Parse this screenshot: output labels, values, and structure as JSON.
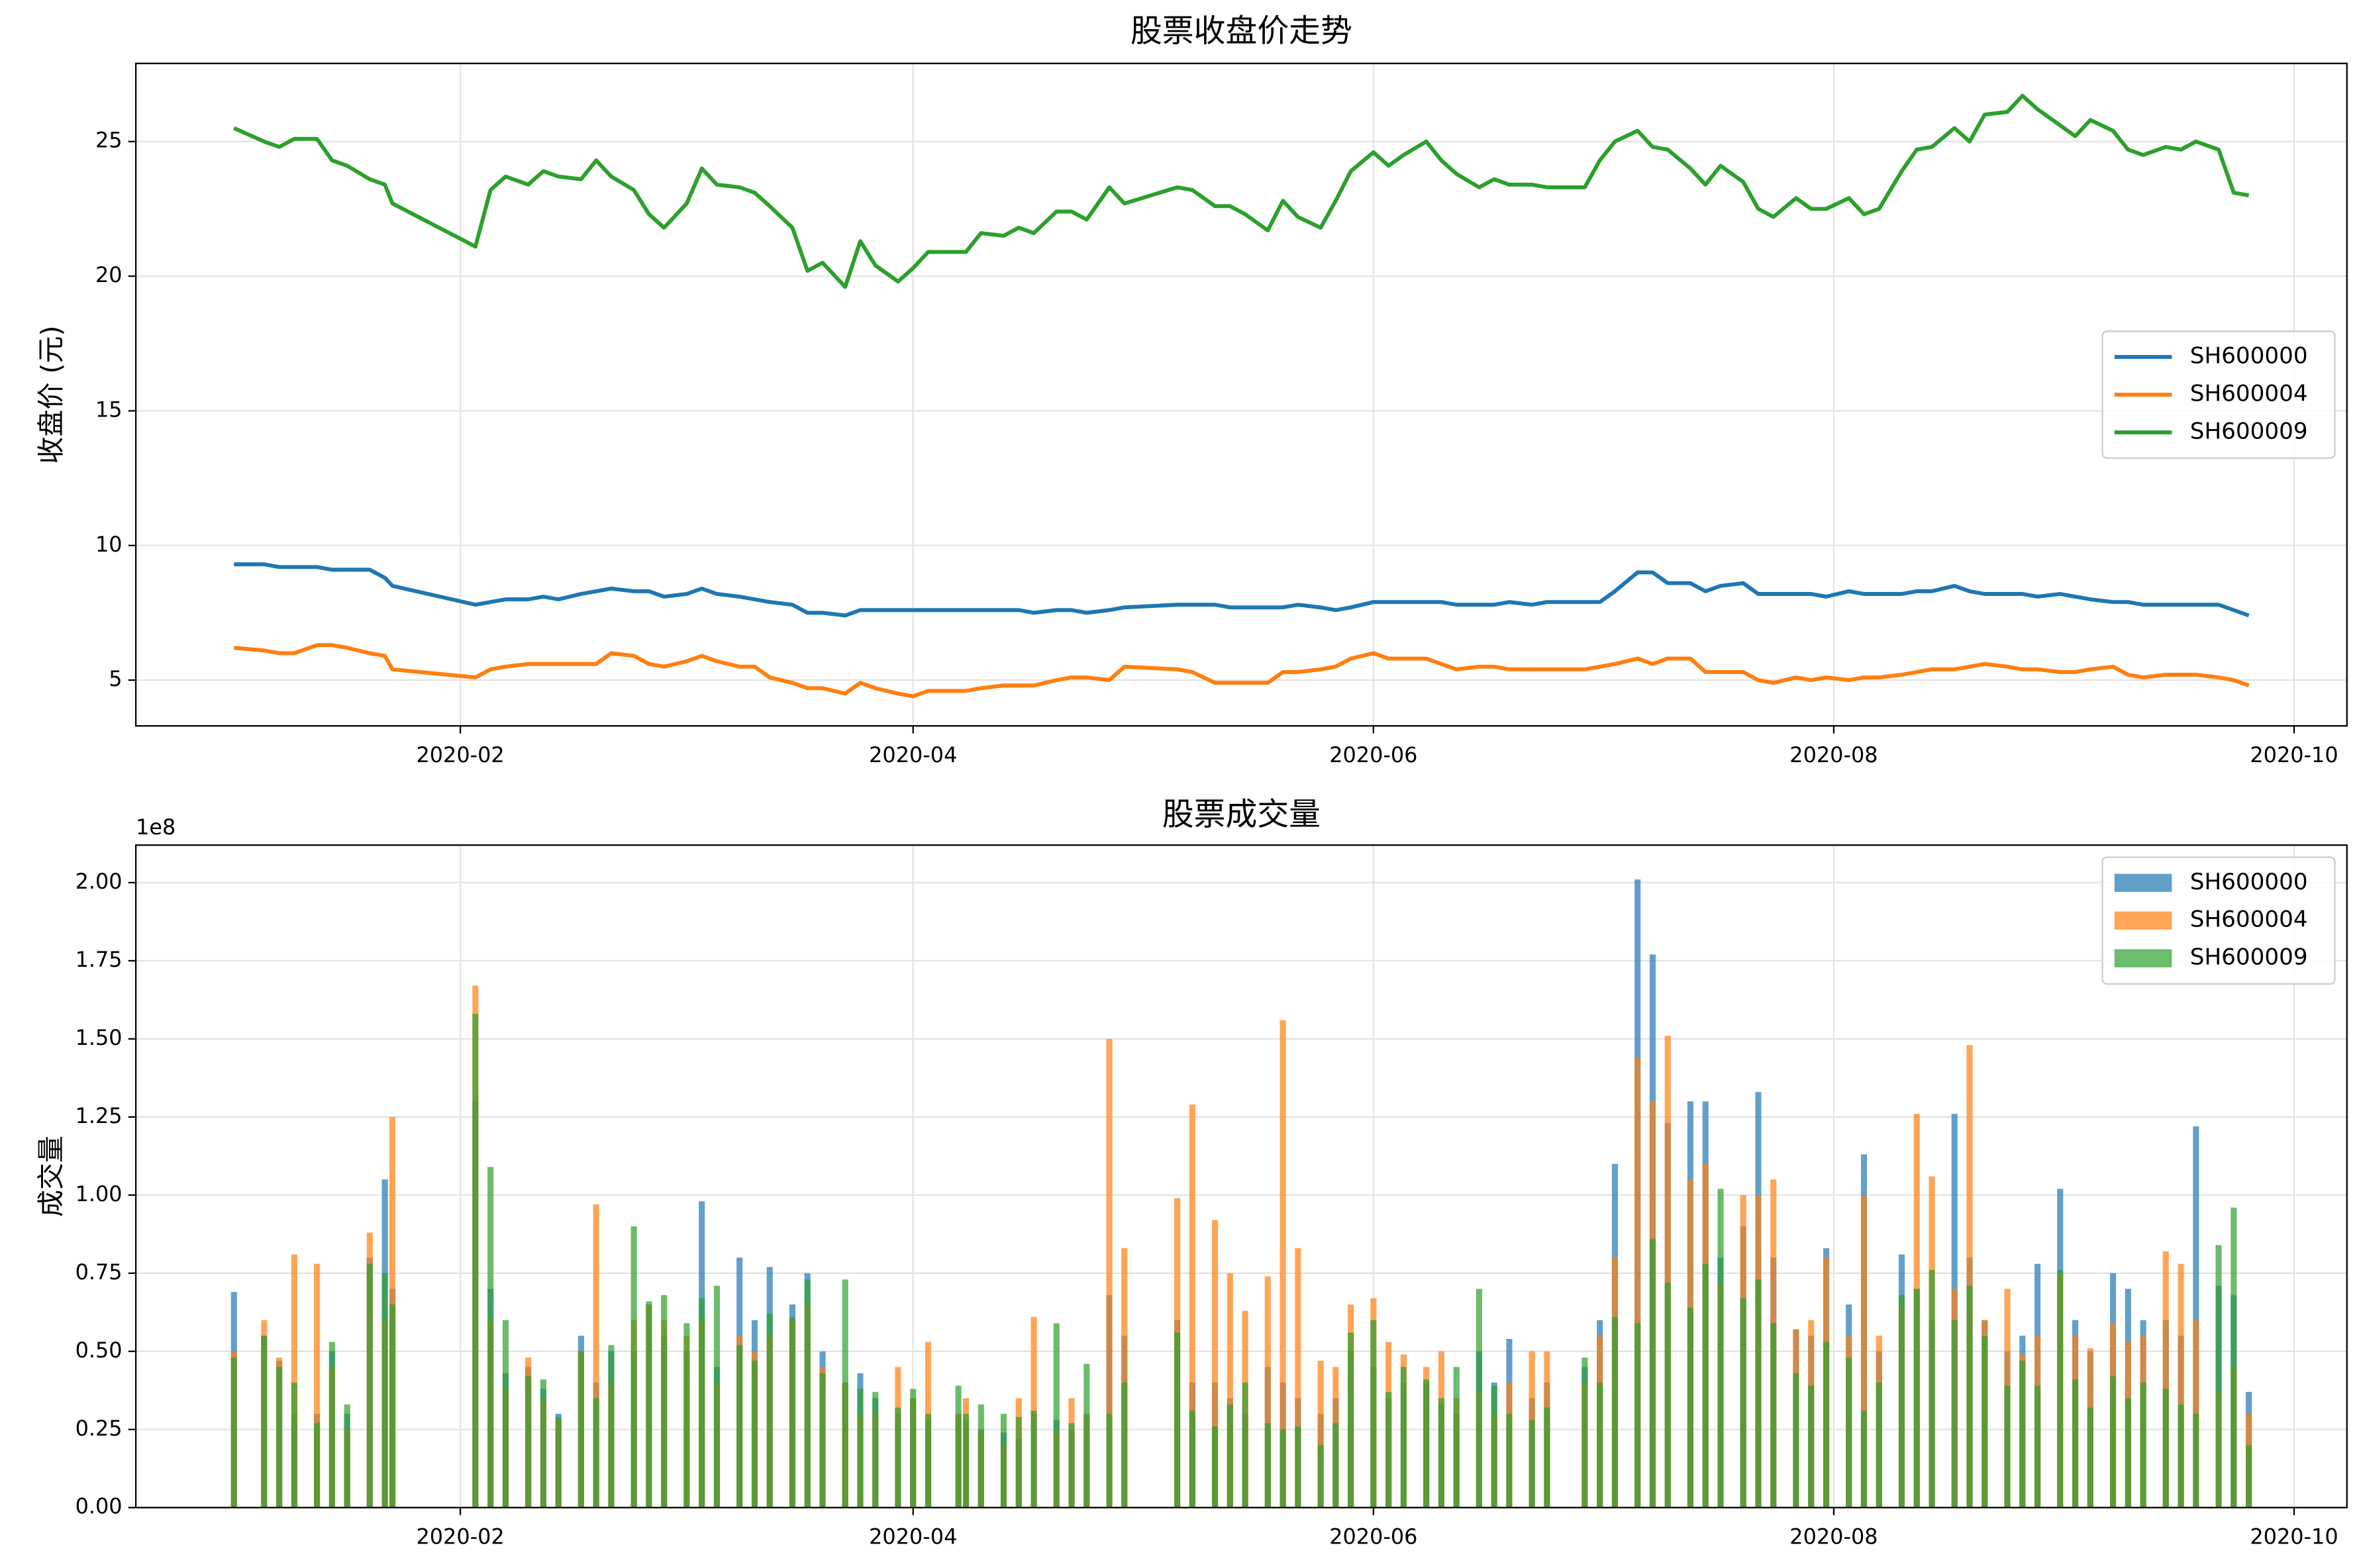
{
  "chart_data": [
    {
      "type": "line",
      "title": "股票收盘价走势",
      "ylabel": "收盘价 (元)",
      "x": [
        "2020-01-02",
        "2020-01-06",
        "2020-01-08",
        "2020-01-10",
        "2020-01-13",
        "2020-01-15",
        "2020-01-17",
        "2020-01-20",
        "2020-01-22",
        "2020-01-23",
        "2020-02-03",
        "2020-02-05",
        "2020-02-07",
        "2020-02-10",
        "2020-02-12",
        "2020-02-14",
        "2020-02-17",
        "2020-02-19",
        "2020-02-21",
        "2020-02-24",
        "2020-02-26",
        "2020-02-28",
        "2020-03-02",
        "2020-03-04",
        "2020-03-06",
        "2020-03-09",
        "2020-03-11",
        "2020-03-13",
        "2020-03-16",
        "2020-03-18",
        "2020-03-20",
        "2020-03-23",
        "2020-03-25",
        "2020-03-27",
        "2020-03-30",
        "2020-04-01",
        "2020-04-03",
        "2020-04-07",
        "2020-04-08",
        "2020-04-10",
        "2020-04-13",
        "2020-04-15",
        "2020-04-17",
        "2020-04-20",
        "2020-04-22",
        "2020-04-24",
        "2020-04-27",
        "2020-04-29",
        "2020-05-06",
        "2020-05-08",
        "2020-05-11",
        "2020-05-13",
        "2020-05-15",
        "2020-05-18",
        "2020-05-20",
        "2020-05-22",
        "2020-05-25",
        "2020-05-27",
        "2020-05-29",
        "2020-06-01",
        "2020-06-03",
        "2020-06-05",
        "2020-06-08",
        "2020-06-10",
        "2020-06-12",
        "2020-06-15",
        "2020-06-17",
        "2020-06-19",
        "2020-06-22",
        "2020-06-24",
        "2020-06-29",
        "2020-07-01",
        "2020-07-03",
        "2020-07-06",
        "2020-07-08",
        "2020-07-10",
        "2020-07-13",
        "2020-07-15",
        "2020-07-17",
        "2020-07-20",
        "2020-07-22",
        "2020-07-24",
        "2020-07-27",
        "2020-07-29",
        "2020-07-31",
        "2020-08-03",
        "2020-08-05",
        "2020-08-07",
        "2020-08-10",
        "2020-08-12",
        "2020-08-14",
        "2020-08-17",
        "2020-08-19",
        "2020-08-21",
        "2020-08-24",
        "2020-08-26",
        "2020-08-28",
        "2020-08-31",
        "2020-09-02",
        "2020-09-04",
        "2020-09-07",
        "2020-09-09",
        "2020-09-11",
        "2020-09-14",
        "2020-09-16",
        "2020-09-18",
        "2020-09-21",
        "2020-09-23",
        "2020-09-25"
      ],
      "xlim": [
        "2019-12-20",
        "2020-10-08"
      ],
      "xticks": [
        {
          "value": "2020-02-01",
          "label": "2020-02"
        },
        {
          "value": "2020-04-01",
          "label": "2020-04"
        },
        {
          "value": "2020-06-01",
          "label": "2020-06"
        },
        {
          "value": "2020-08-01",
          "label": "2020-08"
        },
        {
          "value": "2020-10-01",
          "label": "2020-10"
        }
      ],
      "ylim": [
        3.3,
        27.9
      ],
      "yticks": [
        5,
        10,
        15,
        20,
        25
      ],
      "grid": true,
      "legend": "center right",
      "series": [
        {
          "name": "SH600000",
          "color": "#1f77b4",
          "values": [
            9.3,
            9.3,
            9.2,
            9.2,
            9.2,
            9.1,
            9.1,
            9.1,
            8.8,
            8.5,
            7.8,
            7.9,
            8.0,
            8.0,
            8.1,
            8.0,
            8.2,
            8.3,
            8.4,
            8.3,
            8.3,
            8.1,
            8.2,
            8.4,
            8.2,
            8.1,
            8.0,
            7.9,
            7.8,
            7.5,
            7.5,
            7.4,
            7.6,
            7.6,
            7.6,
            7.6,
            7.6,
            7.6,
            7.6,
            7.6,
            7.6,
            7.6,
            7.5,
            7.6,
            7.6,
            7.5,
            7.6,
            7.7,
            7.8,
            7.8,
            7.8,
            7.7,
            7.7,
            7.7,
            7.7,
            7.8,
            7.7,
            7.6,
            7.7,
            7.9,
            7.9,
            7.9,
            7.9,
            7.9,
            7.8,
            7.8,
            7.8,
            7.9,
            7.8,
            7.9,
            7.9,
            7.9,
            8.3,
            9.0,
            9.0,
            8.6,
            8.6,
            8.3,
            8.5,
            8.6,
            8.2,
            8.2,
            8.2,
            8.2,
            8.1,
            8.3,
            8.2,
            8.2,
            8.2,
            8.3,
            8.3,
            8.5,
            8.3,
            8.2,
            8.2,
            8.2,
            8.1,
            8.2,
            8.1,
            8.0,
            7.9,
            7.9,
            7.8,
            7.8,
            7.8,
            7.8,
            7.8,
            7.6,
            7.4
          ]
        },
        {
          "name": "SH600004",
          "color": "#ff7f0e",
          "values": [
            6.2,
            6.1,
            6.0,
            6.0,
            6.3,
            6.3,
            6.2,
            6.0,
            5.9,
            5.4,
            5.1,
            5.4,
            5.5,
            5.6,
            5.6,
            5.6,
            5.6,
            5.6,
            6.0,
            5.9,
            5.6,
            5.5,
            5.7,
            5.9,
            5.7,
            5.5,
            5.5,
            5.1,
            4.9,
            4.7,
            4.7,
            4.5,
            4.9,
            4.7,
            4.5,
            4.4,
            4.6,
            4.6,
            4.6,
            4.7,
            4.8,
            4.8,
            4.8,
            5.0,
            5.1,
            5.1,
            5.0,
            5.5,
            5.4,
            5.3,
            4.9,
            4.9,
            4.9,
            4.9,
            5.3,
            5.3,
            5.4,
            5.5,
            5.8,
            6.0,
            5.8,
            5.8,
            5.8,
            5.6,
            5.4,
            5.5,
            5.5,
            5.4,
            5.4,
            5.4,
            5.4,
            5.5,
            5.6,
            5.8,
            5.6,
            5.8,
            5.8,
            5.3,
            5.3,
            5.3,
            5.0,
            4.9,
            5.1,
            5.0,
            5.1,
            5.0,
            5.1,
            5.1,
            5.2,
            5.3,
            5.4,
            5.4,
            5.5,
            5.6,
            5.5,
            5.4,
            5.4,
            5.3,
            5.3,
            5.4,
            5.5,
            5.2,
            5.1,
            5.2,
            5.2,
            5.2,
            5.1,
            5.0,
            4.8
          ]
        },
        {
          "name": "SH600009",
          "color": "#2ca02c",
          "values": [
            25.5,
            25.0,
            24.8,
            25.1,
            25.1,
            24.3,
            24.1,
            23.6,
            23.4,
            22.7,
            21.1,
            23.2,
            23.7,
            23.4,
            23.9,
            23.7,
            23.6,
            24.3,
            23.7,
            23.2,
            22.3,
            21.8,
            22.7,
            24.0,
            23.4,
            23.3,
            23.1,
            22.6,
            21.8,
            20.2,
            20.5,
            19.6,
            21.3,
            20.4,
            19.8,
            20.3,
            20.9,
            20.9,
            20.9,
            21.6,
            21.5,
            21.8,
            21.6,
            22.4,
            22.4,
            22.1,
            23.3,
            22.7,
            23.3,
            23.2,
            22.6,
            22.6,
            22.3,
            21.7,
            22.8,
            22.2,
            21.8,
            22.8,
            23.9,
            24.6,
            24.1,
            24.5,
            25.0,
            24.3,
            23.8,
            23.3,
            23.6,
            23.4,
            23.4,
            23.3,
            23.3,
            24.3,
            25.0,
            25.4,
            24.8,
            24.7,
            24.0,
            23.4,
            24.1,
            23.5,
            22.5,
            22.2,
            22.9,
            22.5,
            22.5,
            22.9,
            22.3,
            22.5,
            23.9,
            24.7,
            24.8,
            25.5,
            25.0,
            26.0,
            26.1,
            26.7,
            26.2,
            25.6,
            25.2,
            25.8,
            25.4,
            24.7,
            24.5,
            24.8,
            24.7,
            25.0,
            24.7,
            23.1,
            23.0
          ]
        }
      ]
    },
    {
      "type": "bar",
      "title": "股票成交量",
      "ylabel": "成交量",
      "y_offset": "1e8",
      "x": [
        "2020-01-02",
        "2020-01-06",
        "2020-01-08",
        "2020-01-10",
        "2020-01-13",
        "2020-01-15",
        "2020-01-17",
        "2020-01-20",
        "2020-01-22",
        "2020-01-23",
        "2020-02-03",
        "2020-02-05",
        "2020-02-07",
        "2020-02-10",
        "2020-02-12",
        "2020-02-14",
        "2020-02-17",
        "2020-02-19",
        "2020-02-21",
        "2020-02-24",
        "2020-02-26",
        "2020-02-28",
        "2020-03-02",
        "2020-03-04",
        "2020-03-06",
        "2020-03-09",
        "2020-03-11",
        "2020-03-13",
        "2020-03-16",
        "2020-03-18",
        "2020-03-20",
        "2020-03-23",
        "2020-03-25",
        "2020-03-27",
        "2020-03-30",
        "2020-04-01",
        "2020-04-03",
        "2020-04-07",
        "2020-04-08",
        "2020-04-10",
        "2020-04-13",
        "2020-04-15",
        "2020-04-17",
        "2020-04-20",
        "2020-04-22",
        "2020-04-24",
        "2020-04-27",
        "2020-04-29",
        "2020-05-06",
        "2020-05-08",
        "2020-05-11",
        "2020-05-13",
        "2020-05-15",
        "2020-05-18",
        "2020-05-20",
        "2020-05-22",
        "2020-05-25",
        "2020-05-27",
        "2020-05-29",
        "2020-06-01",
        "2020-06-03",
        "2020-06-05",
        "2020-06-08",
        "2020-06-10",
        "2020-06-12",
        "2020-06-15",
        "2020-06-17",
        "2020-06-19",
        "2020-06-22",
        "2020-06-24",
        "2020-06-29",
        "2020-07-01",
        "2020-07-03",
        "2020-07-06",
        "2020-07-08",
        "2020-07-10",
        "2020-07-13",
        "2020-07-15",
        "2020-07-17",
        "2020-07-20",
        "2020-07-22",
        "2020-07-24",
        "2020-07-27",
        "2020-07-29",
        "2020-07-31",
        "2020-08-03",
        "2020-08-05",
        "2020-08-07",
        "2020-08-10",
        "2020-08-12",
        "2020-08-14",
        "2020-08-17",
        "2020-08-19",
        "2020-08-21",
        "2020-08-24",
        "2020-08-26",
        "2020-08-28",
        "2020-08-31",
        "2020-09-02",
        "2020-09-04",
        "2020-09-07",
        "2020-09-09",
        "2020-09-11",
        "2020-09-14",
        "2020-09-16",
        "2020-09-18",
        "2020-09-21",
        "2020-09-23",
        "2020-09-25"
      ],
      "xlim": [
        "2019-12-20",
        "2020-10-08"
      ],
      "xticks": [
        {
          "value": "2020-02-01",
          "label": "2020-02"
        },
        {
          "value": "2020-04-01",
          "label": "2020-04"
        },
        {
          "value": "2020-06-01",
          "label": "2020-06"
        },
        {
          "value": "2020-08-01",
          "label": "2020-08"
        },
        {
          "value": "2020-10-01",
          "label": "2020-10"
        }
      ],
      "ylim": [
        0,
        2.12
      ],
      "yticks": [
        {
          "value": 0,
          "label": "0.00"
        },
        {
          "value": 0.25,
          "label": "0.25"
        },
        {
          "value": 0.5,
          "label": "0.50"
        },
        {
          "value": 0.75,
          "label": "0.75"
        },
        {
          "value": 1,
          "label": "1.00"
        },
        {
          "value": 1.25,
          "label": "1.25"
        },
        {
          "value": 1.5,
          "label": "1.50"
        },
        {
          "value": 1.75,
          "label": "1.75"
        },
        {
          "value": 2,
          "label": "2.00"
        }
      ],
      "grid": true,
      "legend": "upper right",
      "series": [
        {
          "name": "SH600000",
          "color": "#1f77b4",
          "values": [
            0.69,
            0.55,
            0.47,
            0.3,
            0.3,
            0.5,
            0.3,
            0.8,
            1.05,
            0.7,
            1.3,
            0.7,
            0.43,
            0.45,
            0.38,
            0.3,
            0.55,
            0.4,
            0.5,
            0.5,
            0.65,
            0.55,
            0.5,
            0.98,
            0.45,
            0.8,
            0.6,
            0.77,
            0.65,
            0.75,
            0.5,
            0.4,
            0.43,
            0.35,
            0.3,
            0.35,
            0.28,
            0.3,
            0.28,
            0.25,
            0.24,
            0.22,
            0.3,
            0.28,
            0.25,
            0.3,
            0.68,
            0.55,
            0.6,
            0.4,
            0.4,
            0.35,
            0.3,
            0.45,
            0.4,
            0.35,
            0.3,
            0.35,
            0.5,
            0.45,
            0.35,
            0.4,
            0.4,
            0.33,
            0.3,
            0.5,
            0.4,
            0.54,
            0.35,
            0.4,
            0.45,
            0.6,
            1.1,
            2.01,
            1.77,
            1.23,
            1.3,
            1.3,
            0.8,
            0.9,
            1.33,
            0.8,
            0.57,
            0.55,
            0.83,
            0.65,
            1.13,
            0.5,
            0.81,
            0.7,
            0.6,
            1.26,
            0.8,
            0.6,
            0.5,
            0.55,
            0.78,
            1.02,
            0.6,
            0.5,
            0.75,
            0.7,
            0.6,
            0.6,
            0.55,
            1.22,
            0.71,
            0.68,
            0.37
          ]
        },
        {
          "name": "SH600004",
          "color": "#ff7f0e",
          "values": [
            0.5,
            0.6,
            0.48,
            0.81,
            0.78,
            0.45,
            0.25,
            0.88,
            0.6,
            1.25,
            1.67,
            0.6,
            0.38,
            0.48,
            0.35,
            0.28,
            0.5,
            0.97,
            0.4,
            0.6,
            0.65,
            0.6,
            0.55,
            0.6,
            0.4,
            0.55,
            0.5,
            0.55,
            0.6,
            0.65,
            0.45,
            0.4,
            0.3,
            0.3,
            0.45,
            0.35,
            0.53,
            0.3,
            0.35,
            0.25,
            0.2,
            0.35,
            0.61,
            0.25,
            0.35,
            0.3,
            1.5,
            0.83,
            0.99,
            1.29,
            0.92,
            0.75,
            0.63,
            0.74,
            1.56,
            0.83,
            0.47,
            0.45,
            0.65,
            0.67,
            0.53,
            0.49,
            0.45,
            0.5,
            0.35,
            0.37,
            0.3,
            0.4,
            0.5,
            0.5,
            0.4,
            0.55,
            0.8,
            1.44,
            1.3,
            1.51,
            1.05,
            1.1,
            0.72,
            1.0,
            1.0,
            1.05,
            0.57,
            0.6,
            0.8,
            0.55,
            1.0,
            0.55,
            0.65,
            1.26,
            1.06,
            0.7,
            1.48,
            0.6,
            0.7,
            0.49,
            0.55,
            0.75,
            0.55,
            0.51,
            0.59,
            0.53,
            0.55,
            0.82,
            0.78,
            0.6,
            0.37,
            0.45,
            0.3
          ]
        },
        {
          "name": "SH600009",
          "color": "#2ca02c",
          "values": [
            0.48,
            0.55,
            0.45,
            0.4,
            0.27,
            0.53,
            0.33,
            0.78,
            0.75,
            0.65,
            1.58,
            1.09,
            0.6,
            0.42,
            0.41,
            0.29,
            0.5,
            0.35,
            0.52,
            0.9,
            0.66,
            0.68,
            0.59,
            0.67,
            0.71,
            0.52,
            0.47,
            0.62,
            0.61,
            0.73,
            0.43,
            0.73,
            0.38,
            0.37,
            0.32,
            0.38,
            0.3,
            0.39,
            0.3,
            0.33,
            0.3,
            0.29,
            0.31,
            0.59,
            0.27,
            0.46,
            0.3,
            0.4,
            0.56,
            0.31,
            0.26,
            0.33,
            0.4,
            0.27,
            0.25,
            0.26,
            0.2,
            0.27,
            0.56,
            0.6,
            0.37,
            0.45,
            0.41,
            0.35,
            0.45,
            0.7,
            0.39,
            0.3,
            0.28,
            0.32,
            0.48,
            0.4,
            0.61,
            0.59,
            0.86,
            0.72,
            0.64,
            0.78,
            1.02,
            0.67,
            0.73,
            0.59,
            0.43,
            0.39,
            0.53,
            0.48,
            0.31,
            0.4,
            0.68,
            0.7,
            0.76,
            0.6,
            0.71,
            0.55,
            0.39,
            0.47,
            0.39,
            0.76,
            0.41,
            0.32,
            0.42,
            0.35,
            0.4,
            0.38,
            0.33,
            0.3,
            0.84,
            0.96,
            0.2
          ]
        }
      ]
    }
  ]
}
